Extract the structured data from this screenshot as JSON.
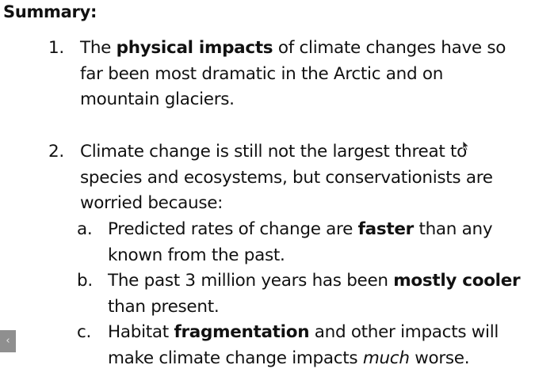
{
  "summary": {
    "title": "Summary:",
    "items": [
      {
        "number": "1.",
        "line1_pre": "The ",
        "line1_bold": "physical impacts",
        "line1_post": " of climate changes have so",
        "line2": "far been most dramatic in the Arctic and on",
        "line3": "mountain glaciers."
      },
      {
        "number": "2.",
        "line1": "Climate change is still not the largest threat to",
        "line2": "species and ecosystems, but conservationists are",
        "line3": "worried because:",
        "subitems": [
          {
            "letter": "a.",
            "line1_pre": "Predicted rates of change are ",
            "line1_bold": "faster",
            "line1_post": " than any",
            "line2": "known from the past."
          },
          {
            "letter": "b.",
            "line1_pre": "The past 3 million years has been ",
            "line1_bold": "mostly cooler",
            "line2": "than present."
          },
          {
            "letter": "c.",
            "line1_pre": "Habitat ",
            "line1_bold": "fragmentation",
            "line1_post": " and other impacts will",
            "line2_pre": "make climate change impacts ",
            "line2_italic": "much",
            "line2_post": " worse."
          }
        ]
      }
    ]
  },
  "nav": {
    "prev_glyph": "‹",
    "prev_icon": "chevron-left-icon"
  },
  "colors": {
    "text": "#111111",
    "nav_bg": "#8f8f8f"
  }
}
